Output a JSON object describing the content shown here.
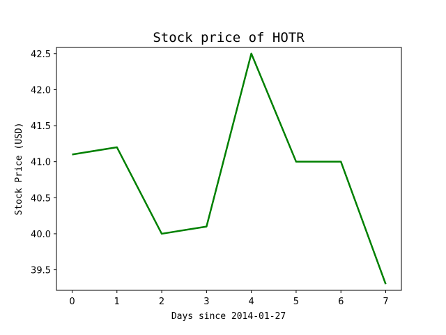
{
  "chart_data": {
    "type": "line",
    "title": "Stock price of HOTR",
    "xlabel": "Days since 2014-01-27",
    "ylabel": "Stock Price (USD)",
    "x": [
      0,
      1,
      2,
      3,
      4,
      5,
      6,
      7
    ],
    "series": [
      {
        "values": [
          41.1,
          41.2,
          40.0,
          40.1,
          42.5,
          41.0,
          41.0,
          39.3
        ]
      }
    ],
    "xticks": [
      0,
      1,
      2,
      3,
      4,
      5,
      6,
      7
    ],
    "yticks": [
      "39.5",
      "40.0",
      "40.5",
      "41.0",
      "41.5",
      "42.0",
      "42.5"
    ],
    "xlim": [
      -0.35,
      7.35
    ],
    "ylim": [
      39.215,
      42.585
    ],
    "grid": false,
    "line_color": "#008000"
  }
}
